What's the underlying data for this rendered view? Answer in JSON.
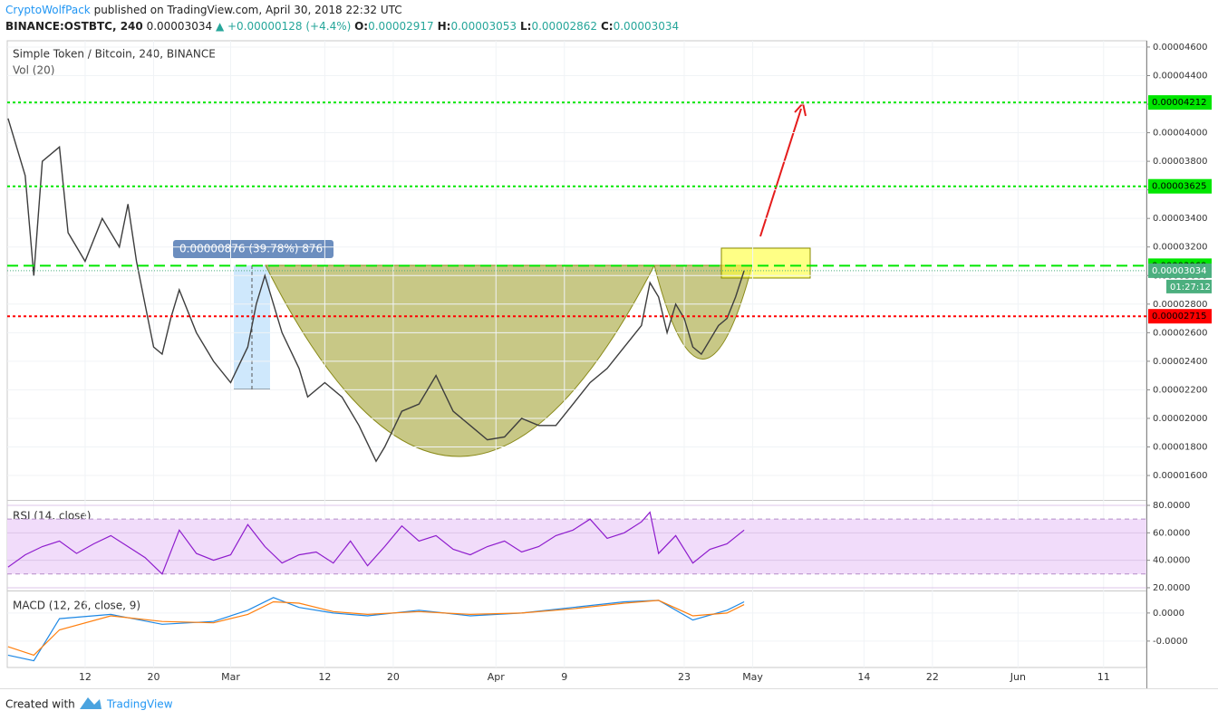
{
  "header": {
    "author": "CryptoWolfPack",
    "published": "published on TradingView.com, April 30, 2018 22:32 UTC",
    "symbol": "BINANCE:OSTBTC, 240",
    "last": "0.00003034",
    "change": "▲ +0.00000128 (+4.4%)",
    "ohlc": [
      {
        "key": "O:",
        "value": "0.00002917"
      },
      {
        "key": "H:",
        "value": "0.00003053"
      },
      {
        "key": "L:",
        "value": "0.00002862"
      },
      {
        "key": "C:",
        "value": "0.00003034"
      }
    ]
  },
  "chart_data": [
    {
      "type": "line",
      "title": "Simple Token / Bitcoin, 240, BINANCE",
      "subtitle": "Vol (20)",
      "xlim": [
        1.9,
        135
      ],
      "xticks": [
        {
          "value": 11,
          "label": "12"
        },
        {
          "value": 19,
          "label": "20"
        },
        {
          "value": 28,
          "label": "Mar"
        },
        {
          "value": 39,
          "label": "12"
        },
        {
          "value": 47,
          "label": "20"
        },
        {
          "value": 59,
          "label": "Apr"
        },
        {
          "value": 67,
          "label": "9"
        },
        {
          "value": 81,
          "label": "23"
        },
        {
          "value": 89,
          "label": "May"
        },
        {
          "value": 102,
          "label": "14"
        },
        {
          "value": 110,
          "label": "22"
        },
        {
          "value": 120,
          "label": "Jun"
        },
        {
          "value": 130,
          "label": "11"
        }
      ],
      "x": [
        2,
        4,
        5,
        6,
        8,
        9,
        11,
        13,
        15,
        16,
        17,
        18,
        19,
        20,
        21,
        22,
        24,
        26,
        28,
        30,
        31,
        32,
        34,
        36,
        37,
        39,
        41,
        43,
        45,
        46,
        48,
        50,
        52,
        54,
        56,
        58,
        60,
        62,
        64,
        66,
        68,
        70,
        72,
        74,
        76,
        77,
        78,
        79,
        80,
        81,
        82,
        83,
        84,
        85,
        86,
        87,
        88
      ],
      "series": [
        {
          "color": "#3d3d3d",
          "values": [
            4.1e-05,
            3.7e-05,
            3e-05,
            3.8e-05,
            3.9e-05,
            3.3e-05,
            3.1e-05,
            3.4e-05,
            3.2e-05,
            3.5e-05,
            3.1e-05,
            2.8e-05,
            2.5e-05,
            2.45e-05,
            2.7e-05,
            2.9e-05,
            2.6e-05,
            2.4e-05,
            2.25e-05,
            2.5e-05,
            2.8e-05,
            3e-05,
            2.6e-05,
            2.35e-05,
            2.15e-05,
            2.25e-05,
            2.15e-05,
            1.95e-05,
            1.7e-05,
            1.8e-05,
            2.05e-05,
            2.1e-05,
            2.3e-05,
            2.05e-05,
            1.95e-05,
            1.85e-05,
            1.87e-05,
            2e-05,
            1.95e-05,
            1.95e-05,
            2.1e-05,
            2.25e-05,
            2.35e-05,
            2.5e-05,
            2.65e-05,
            2.95e-05,
            2.85e-05,
            2.6e-05,
            2.8e-05,
            2.7e-05,
            2.5e-05,
            2.45e-05,
            2.55e-05,
            2.65e-05,
            2.7e-05,
            2.85e-05,
            3.034e-05
          ]
        }
      ],
      "ylim": [
        1.429e-05,
        4.644e-05
      ],
      "yticks": [
        {
          "value": 4.6e-05,
          "label": "0.00004600"
        },
        {
          "value": 4.4e-05,
          "label": "0.00004400"
        },
        {
          "value": 4.2e-05,
          "label": "0.00004200"
        },
        {
          "value": 4e-05,
          "label": "0.00004000"
        },
        {
          "value": 3.8e-05,
          "label": "0.00003800"
        },
        {
          "value": 3.6e-05,
          "label": "0.00003600"
        },
        {
          "value": 3.4e-05,
          "label": "0.00003400"
        },
        {
          "value": 3.2e-05,
          "label": "0.00003200"
        },
        {
          "value": 3e-05,
          "label": "0.00003000"
        },
        {
          "value": 2.8e-05,
          "label": "0.00002800"
        },
        {
          "value": 2.6e-05,
          "label": "0.00002600"
        },
        {
          "value": 2.4e-05,
          "label": "0.00002400"
        },
        {
          "value": 2.2e-05,
          "label": "0.00002200"
        },
        {
          "value": 2e-05,
          "label": "0.00002000"
        },
        {
          "value": 1.8e-05,
          "label": "0.00001800"
        },
        {
          "value": 1.6e-05,
          "label": "0.00001600"
        }
      ],
      "grid": true,
      "levels": [
        {
          "value": 4.212e-05,
          "color": "#00e600",
          "style": "dotted"
        },
        {
          "value": 3.625e-05,
          "color": "#00e600",
          "style": "dotted"
        },
        {
          "value": 3.069e-05,
          "color": "#00e600",
          "style": "dashed"
        },
        {
          "value": 3.034e-05,
          "color": "#4caf7f",
          "style": "price"
        },
        {
          "value": 2.715e-05,
          "color": "#ff0000",
          "style": "dotted"
        }
      ],
      "countdown": "01:27:12",
      "annotation": "0.00000876 (39.78%) 876"
    },
    {
      "type": "line",
      "title": "RSI (14, close)",
      "x": [
        2,
        4,
        6,
        8,
        10,
        12,
        14,
        16,
        18,
        20,
        22,
        24,
        26,
        28,
        30,
        32,
        34,
        36,
        38,
        40,
        42,
        44,
        46,
        48,
        50,
        52,
        54,
        56,
        58,
        60,
        62,
        64,
        66,
        68,
        70,
        72,
        74,
        76,
        77,
        78,
        80,
        82,
        84,
        86,
        88
      ],
      "series": [
        {
          "color": "#8e1ccd",
          "values": [
            35,
            44,
            50,
            54,
            45,
            52,
            58,
            50,
            42,
            30,
            62,
            45,
            40,
            44,
            66,
            50,
            38,
            44,
            46,
            38,
            54,
            36,
            50,
            65,
            54,
            58,
            48,
            44,
            50,
            54,
            46,
            50,
            58,
            62,
            70,
            56,
            60,
            68,
            75,
            45,
            58,
            38,
            48,
            52,
            62
          ]
        }
      ],
      "ylim": [
        18,
        83.3
      ],
      "yticks": [
        {
          "value": 80,
          "label": "80.0000"
        },
        {
          "value": 60,
          "label": "60.0000"
        },
        {
          "value": 40,
          "label": "40.0000"
        },
        {
          "value": 20,
          "label": "20.0000"
        }
      ],
      "band": [
        30,
        70
      ],
      "band_color": "#f1dcfa",
      "grid": true
    },
    {
      "type": "line",
      "title": "MACD (12, 26, close, 9)",
      "x": [
        2,
        5,
        8,
        14,
        20,
        26,
        30,
        33,
        36,
        40,
        44,
        50,
        56,
        62,
        68,
        74,
        78,
        82,
        86,
        88
      ],
      "series": [
        {
          "color": "#1e88e5",
          "values": [
            -1.5e-06,
            -1.7e-06,
            -2e-07,
            -5e-08,
            -4e-07,
            -3e-07,
            1e-07,
            5.5e-07,
            2e-07,
            0,
            -1e-07,
            1e-07,
            -1e-07,
            0,
            2e-07,
            4e-07,
            4.5e-07,
            -2.5e-07,
            1e-07,
            4e-07
          ]
        },
        {
          "color": "#ff7f0e",
          "values": [
            -1.2e-06,
            -1.5e-06,
            -6e-07,
            -1e-07,
            -3e-07,
            -3.5e-07,
            -5e-08,
            4e-07,
            3.5e-07,
            5e-08,
            -5e-08,
            5e-08,
            -5e-08,
            0,
            1.5e-07,
            3.5e-07,
            4.5e-07,
            -1e-07,
            0,
            3e-07
          ]
        }
      ],
      "ylim": [
        -1.94e-06,
        7.7e-07
      ],
      "yticks": [
        {
          "value": 0,
          "label": "0.0000"
        },
        {
          "value": -1e-06,
          "label": "-0.0000"
        }
      ],
      "grid": true
    }
  ],
  "footer": {
    "created": "Created with",
    "brand": "TradingView"
  }
}
